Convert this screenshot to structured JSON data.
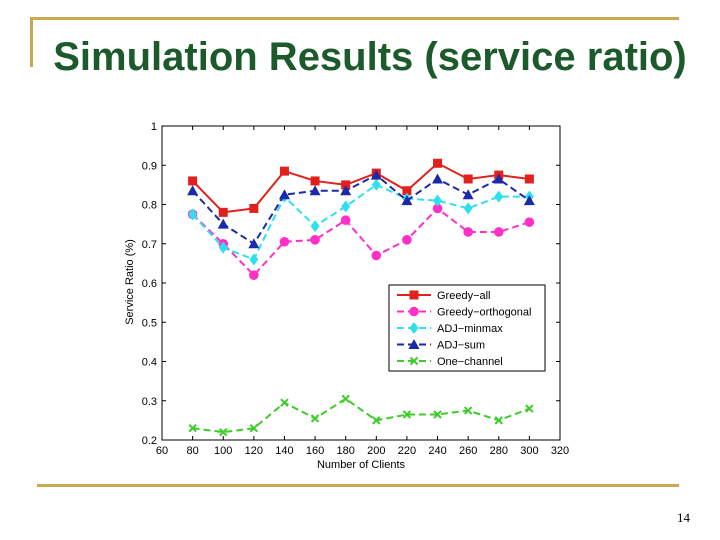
{
  "slide": {
    "title": "Simulation Results (service ratio)",
    "page_number": "14"
  },
  "colors": {
    "frame": "#c8a951",
    "title": "#1d5a2b"
  },
  "chart_data": {
    "type": "line",
    "xlabel": "Number of Clients",
    "ylabel": "Service Ratio (%)",
    "xlim": [
      60,
      320
    ],
    "ylim": [
      0.2,
      1
    ],
    "xticks": [
      60,
      80,
      100,
      120,
      140,
      160,
      180,
      200,
      220,
      240,
      260,
      280,
      300,
      320
    ],
    "yticks": [
      0.2,
      0.3,
      0.4,
      0.5,
      0.6,
      0.7,
      0.8,
      0.9,
      1
    ],
    "x": [
      80,
      100,
      120,
      140,
      160,
      180,
      200,
      220,
      240,
      260,
      280,
      300
    ],
    "grid": false,
    "legend_position": "right",
    "series": [
      {
        "name": "Greedy−all",
        "color": "#e0211d",
        "marker": "square",
        "values": [
          0.86,
          0.78,
          0.79,
          0.885,
          0.86,
          0.85,
          0.88,
          0.835,
          0.905,
          0.865,
          0.875,
          0.865
        ]
      },
      {
        "name": "Greedy−orthogonal",
        "color": "#ff2fc8",
        "marker": "circle",
        "values": [
          0.775,
          0.7,
          0.62,
          0.705,
          0.71,
          0.76,
          0.67,
          0.71,
          0.79,
          0.73,
          0.73,
          0.755
        ]
      },
      {
        "name": "ADJ−minmax",
        "color": "#2ee0ee",
        "marker": "diamond",
        "values": [
          0.775,
          0.69,
          0.66,
          0.82,
          0.745,
          0.795,
          0.85,
          0.815,
          0.81,
          0.79,
          0.82,
          0.82
        ]
      },
      {
        "name": "ADJ−sum",
        "color": "#1a2aa8",
        "marker": "triangle",
        "values": [
          0.835,
          0.75,
          0.7,
          0.825,
          0.835,
          0.835,
          0.875,
          0.81,
          0.865,
          0.825,
          0.865,
          0.81
        ]
      },
      {
        "name": "One−channel",
        "color": "#3dcc2a",
        "marker": "x",
        "values": [
          0.23,
          0.22,
          0.23,
          0.295,
          0.255,
          0.305,
          0.25,
          0.265,
          0.265,
          0.275,
          0.25,
          0.28
        ]
      }
    ]
  }
}
